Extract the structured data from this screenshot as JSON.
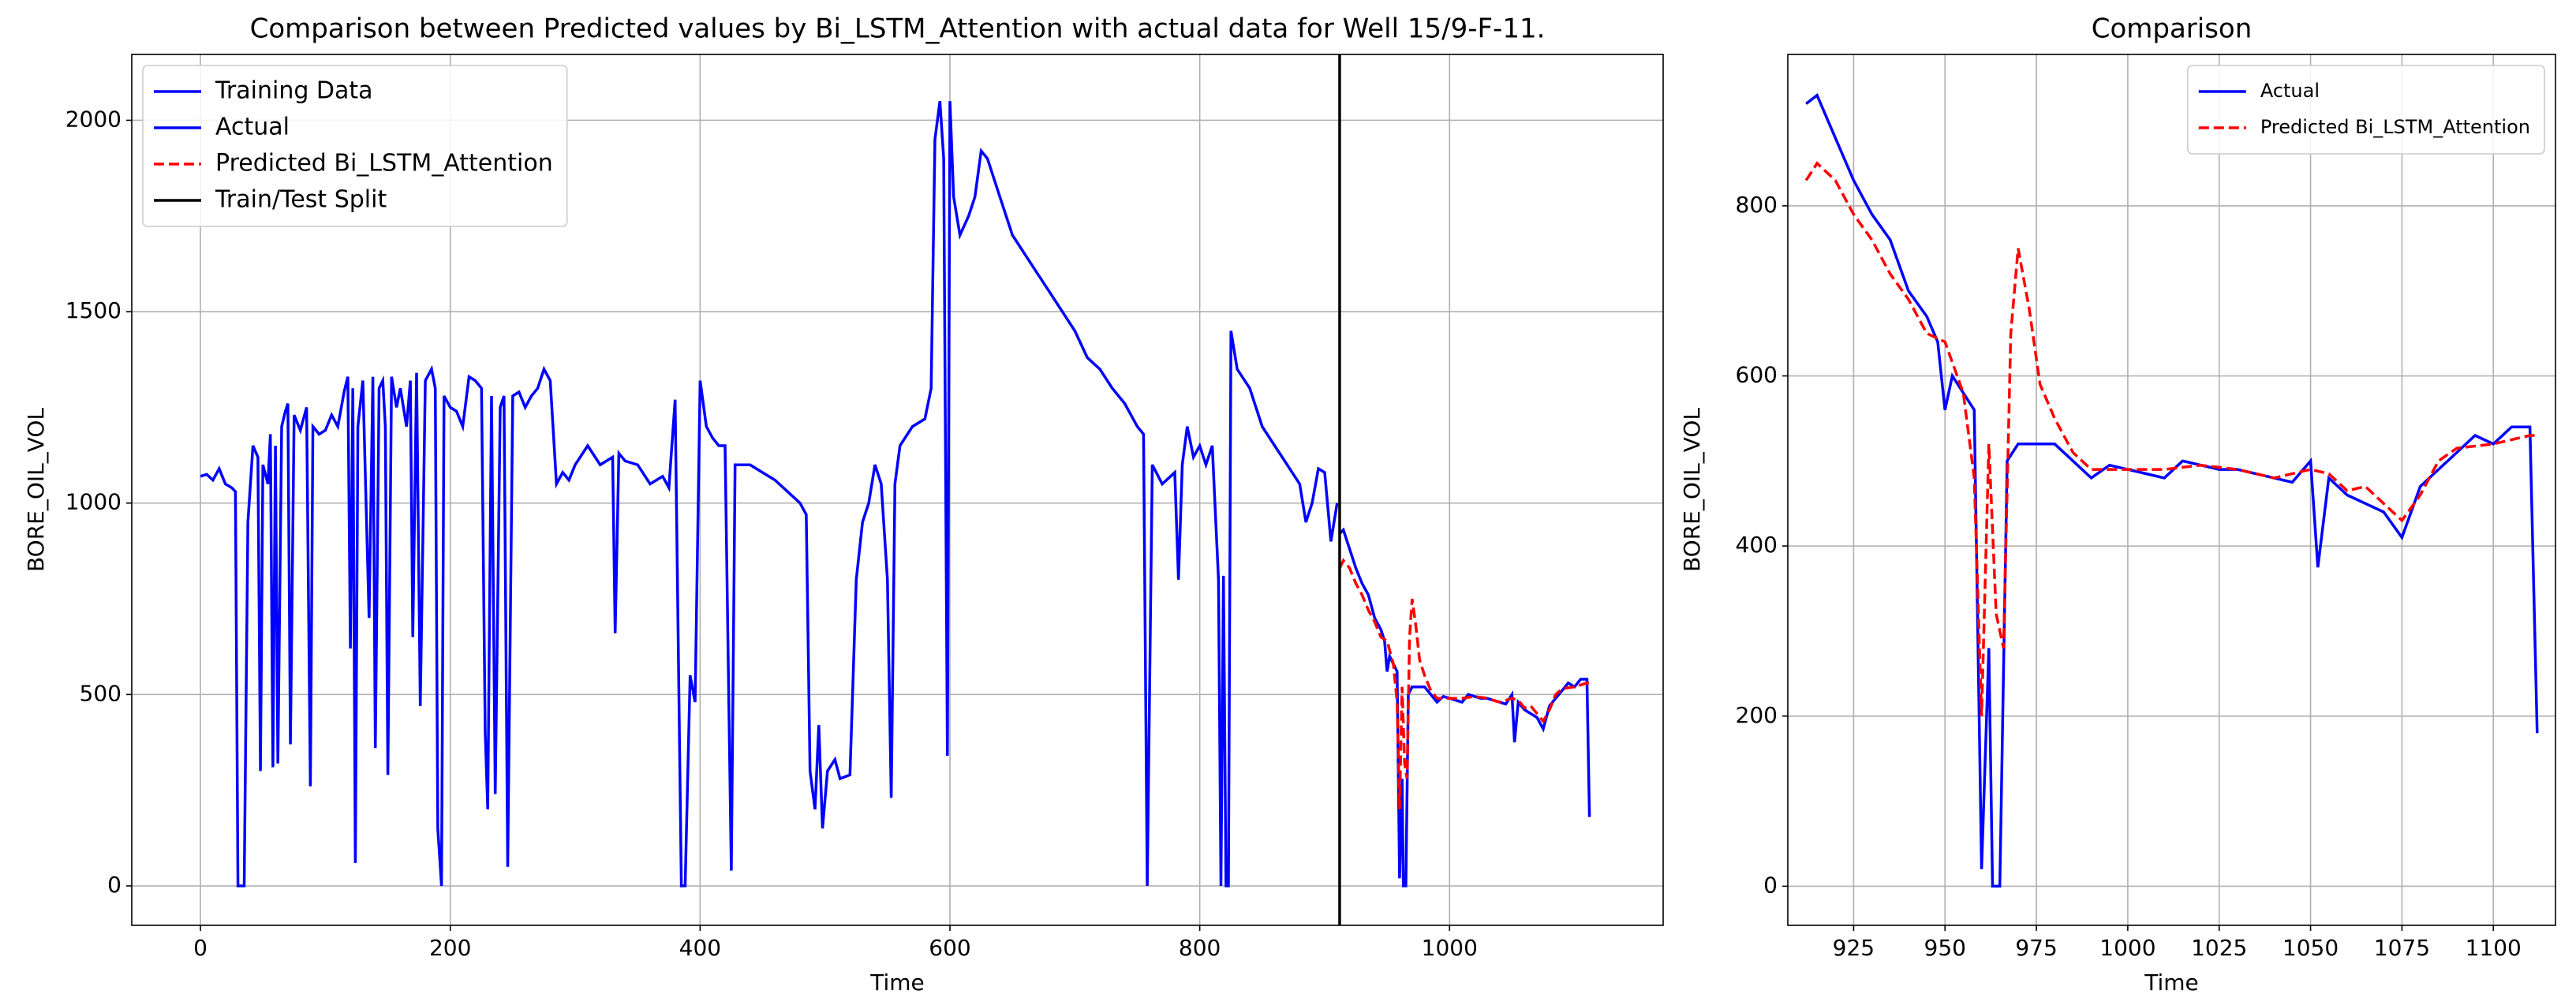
{
  "chart_data": [
    {
      "type": "line",
      "title": "Comparison between Predicted values by Bi_LSTM_Attention with actual data for Well 15/9-F-11.",
      "x_label": "Time",
      "y_label": "BORE_OIL_VOL",
      "xlim": [
        -55,
        1171
      ],
      "ylim": [
        -103,
        2172
      ],
      "xticks": [
        0,
        200,
        400,
        600,
        800,
        1000
      ],
      "yticks": [
        0,
        500,
        1000,
        1500,
        2000
      ],
      "grid": true,
      "legend": "upper left",
      "series": [
        {
          "name": "Training Data",
          "color": "#0000ff",
          "dash": "solid",
          "x": [
            0,
            5,
            10,
            15,
            20,
            25,
            28,
            30,
            35,
            38,
            42,
            46,
            48,
            50,
            54,
            56,
            58,
            60,
            62,
            65,
            68,
            70,
            72,
            75,
            80,
            85,
            88,
            90,
            95,
            100,
            105,
            110,
            115,
            118,
            120,
            122,
            124,
            126,
            130,
            135,
            138,
            140,
            143,
            146,
            148,
            150,
            153,
            157,
            160,
            165,
            168,
            170,
            173,
            176,
            180,
            185,
            188,
            190,
            193,
            195,
            200,
            205,
            210,
            215,
            220,
            225,
            228,
            230,
            233,
            236,
            240,
            243,
            246,
            250,
            255,
            260,
            265,
            270,
            275,
            280,
            285,
            290,
            295,
            300,
            310,
            320,
            330,
            332,
            335,
            340,
            350,
            360,
            370,
            375,
            380,
            385,
            388,
            392,
            396,
            400,
            405,
            410,
            415,
            420,
            425,
            428,
            440,
            460,
            470,
            480,
            485,
            488,
            492,
            495,
            498,
            502,
            508,
            512,
            520,
            525,
            530,
            535,
            540,
            545,
            550,
            553,
            556,
            560,
            570,
            580,
            585,
            588,
            592,
            595,
            598,
            600,
            603,
            608,
            615,
            620,
            625,
            630,
            640,
            650,
            660,
            670,
            680,
            690,
            700,
            710,
            720,
            730,
            740,
            750,
            755,
            758,
            762,
            770,
            780,
            783,
            786,
            790,
            795,
            800,
            805,
            810,
            815,
            817,
            819,
            821,
            823,
            825,
            830,
            840,
            850,
            860,
            870,
            880,
            885,
            890,
            895,
            900,
            905,
            910
          ],
          "values": [
            1070,
            1075,
            1060,
            1090,
            1050,
            1040,
            1030,
            0,
            0,
            950,
            1150,
            1120,
            300,
            1100,
            1050,
            1180,
            310,
            1150,
            320,
            1200,
            1240,
            1260,
            370,
            1230,
            1190,
            1250,
            260,
            1200,
            1180,
            1190,
            1230,
            1200,
            1290,
            1330,
            620,
            1300,
            60,
            1200,
            1320,
            700,
            1330,
            360,
            1300,
            1320,
            1200,
            290,
            1330,
            1250,
            1300,
            1200,
            1320,
            650,
            1340,
            470,
            1320,
            1350,
            1300,
            150,
            0,
            1280,
            1250,
            1240,
            1200,
            1330,
            1320,
            1300,
            400,
            200,
            1280,
            240,
            1250,
            1280,
            50,
            1280,
            1290,
            1250,
            1280,
            1300,
            1350,
            1320,
            1050,
            1080,
            1060,
            1100,
            1150,
            1100,
            1120,
            660,
            1130,
            1110,
            1100,
            1050,
            1070,
            1040,
            1270,
            0,
            0,
            550,
            480,
            1320,
            1200,
            1170,
            1150,
            1150,
            40,
            1100,
            1100,
            1060,
            1030,
            1000,
            970,
            300,
            200,
            420,
            150,
            300,
            330,
            280,
            290,
            800,
            950,
            1000,
            1100,
            1050,
            800,
            230,
            1050,
            1150,
            1200,
            1220,
            1300,
            1950,
            2050,
            1900,
            340,
            2050,
            1800,
            1700,
            1750,
            1800,
            1920,
            1900,
            1800,
            1700,
            1650,
            1600,
            1550,
            1500,
            1450,
            1380,
            1350,
            1300,
            1260,
            1200,
            1180,
            0,
            1100,
            1050,
            1080,
            800,
            1100,
            1200,
            1120,
            1150,
            1100,
            1150,
            800,
            0,
            810,
            0,
            0,
            1450,
            1350,
            1300,
            1200,
            1150,
            1100,
            1050,
            950,
            1000,
            1090,
            1080,
            900,
            1000
          ]
        },
        {
          "name": "Actual",
          "color": "#0000ff",
          "dash": "solid",
          "x": [
            912,
            915,
            920,
            925,
            930,
            935,
            940,
            945,
            948,
            950,
            952,
            955,
            958,
            960,
            962,
            963,
            965,
            967,
            970,
            975,
            980,
            985,
            990,
            995,
            1000,
            1005,
            1010,
            1015,
            1020,
            1025,
            1030,
            1035,
            1040,
            1045,
            1050,
            1052,
            1055,
            1060,
            1065,
            1070,
            1075,
            1080,
            1085,
            1090,
            1095,
            1100,
            1105,
            1110,
            1112
          ],
          "values": [
            920,
            930,
            880,
            830,
            790,
            760,
            700,
            670,
            640,
            560,
            600,
            580,
            560,
            20,
            280,
            0,
            0,
            500,
            520,
            520,
            520,
            500,
            480,
            495,
            490,
            485,
            480,
            500,
            495,
            490,
            490,
            485,
            480,
            475,
            500,
            375,
            480,
            460,
            450,
            440,
            410,
            470,
            490,
            510,
            530,
            520,
            540,
            540,
            180
          ]
        },
        {
          "name": "Predicted Bi_LSTM_Attention",
          "color": "#ff0000",
          "dash": "dashed",
          "x": [
            912,
            915,
            920,
            925,
            930,
            935,
            940,
            945,
            950,
            955,
            958,
            960,
            962,
            964,
            966,
            968,
            970,
            973,
            976,
            980,
            985,
            990,
            1000,
            1010,
            1020,
            1030,
            1040,
            1050,
            1055,
            1060,
            1065,
            1070,
            1075,
            1080,
            1085,
            1090,
            1100,
            1110,
            1112
          ],
          "values": [
            830,
            850,
            830,
            790,
            760,
            720,
            690,
            650,
            640,
            580,
            480,
            200,
            520,
            320,
            280,
            650,
            750,
            680,
            590,
            550,
            510,
            490,
            490,
            490,
            495,
            490,
            480,
            490,
            485,
            465,
            470,
            450,
            430,
            460,
            500,
            515,
            520,
            530,
            530
          ]
        }
      ],
      "split": {
        "name": "Train/Test Split",
        "x": 912,
        "color": "#000000"
      }
    },
    {
      "type": "line",
      "title": "Comparison",
      "x_label": "Time",
      "y_label": "BORE_OIL_VOL",
      "xlim": [
        907,
        1117
      ],
      "ylim": [
        -46,
        978
      ],
      "xticks": [
        925,
        950,
        975,
        1000,
        1025,
        1050,
        1075,
        1100
      ],
      "yticks": [
        0,
        200,
        400,
        600,
        800
      ],
      "grid": true,
      "legend": "upper right",
      "series": [
        {
          "name": "Actual",
          "color": "#0000ff",
          "dash": "solid",
          "x": [
            912,
            915,
            920,
            925,
            930,
            935,
            940,
            945,
            948,
            950,
            952,
            955,
            958,
            960,
            962,
            963,
            965,
            967,
            970,
            975,
            980,
            985,
            990,
            995,
            1000,
            1005,
            1010,
            1015,
            1020,
            1025,
            1030,
            1035,
            1040,
            1045,
            1050,
            1052,
            1055,
            1060,
            1065,
            1070,
            1075,
            1080,
            1085,
            1090,
            1095,
            1100,
            1105,
            1110,
            1112
          ],
          "values": [
            920,
            930,
            880,
            830,
            790,
            760,
            700,
            670,
            640,
            560,
            600,
            580,
            560,
            20,
            280,
            0,
            0,
            500,
            520,
            520,
            520,
            500,
            480,
            495,
            490,
            485,
            480,
            500,
            495,
            490,
            490,
            485,
            480,
            475,
            500,
            375,
            480,
            460,
            450,
            440,
            410,
            470,
            490,
            510,
            530,
            520,
            540,
            540,
            180
          ]
        },
        {
          "name": "Predicted Bi_LSTM_Attention",
          "color": "#ff0000",
          "dash": "dashed",
          "x": [
            912,
            915,
            920,
            925,
            930,
            935,
            940,
            945,
            950,
            955,
            958,
            960,
            962,
            964,
            966,
            968,
            970,
            973,
            976,
            980,
            985,
            990,
            1000,
            1010,
            1020,
            1030,
            1040,
            1050,
            1055,
            1060,
            1065,
            1070,
            1075,
            1080,
            1085,
            1090,
            1100,
            1110,
            1112
          ],
          "values": [
            830,
            850,
            830,
            790,
            760,
            720,
            690,
            650,
            640,
            580,
            480,
            200,
            520,
            320,
            280,
            650,
            750,
            680,
            590,
            550,
            510,
            490,
            490,
            490,
            495,
            490,
            480,
            490,
            485,
            465,
            470,
            450,
            430,
            460,
            500,
            515,
            520,
            530,
            530
          ]
        }
      ]
    }
  ]
}
